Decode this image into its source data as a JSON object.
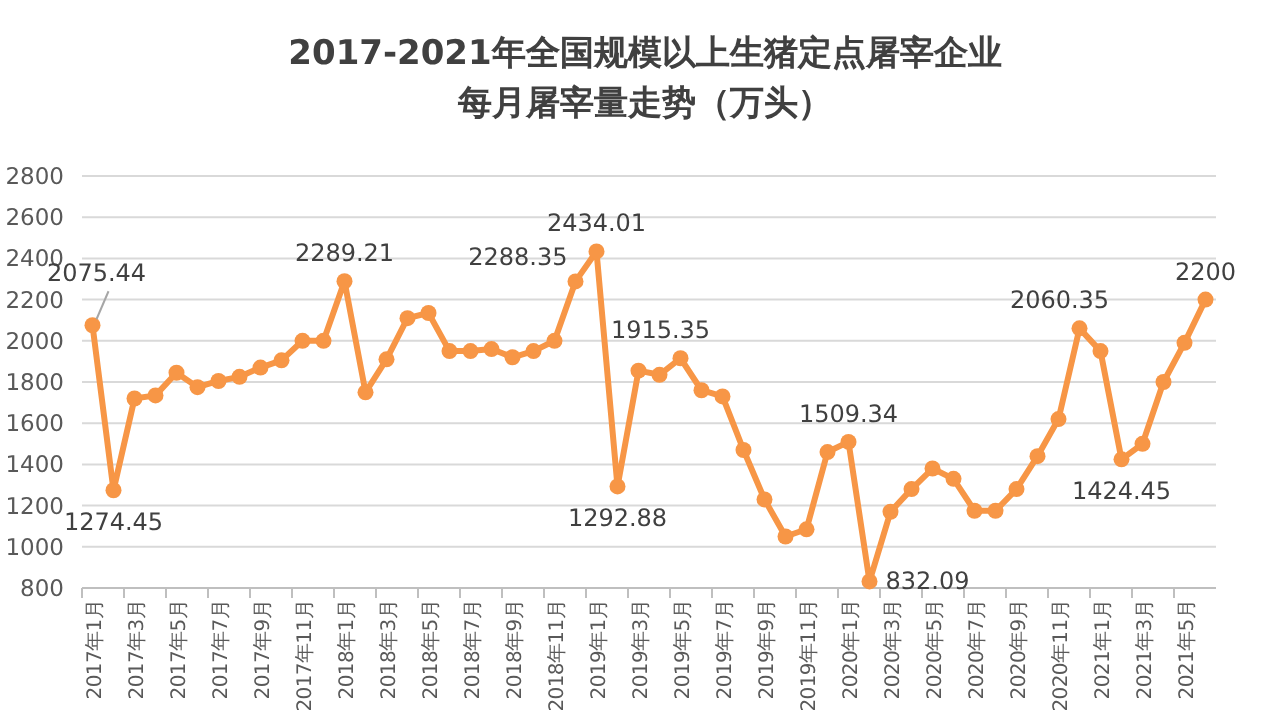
{
  "chart_data": {
    "type": "line",
    "title": "2017-2021年全国规模以上生猪定点屠宰企业",
    "subtitle": "每月屠宰量走势（万头）",
    "categories": [
      "2017年1月",
      null,
      "2017年3月",
      null,
      "2017年5月",
      null,
      "2017年7月",
      null,
      "2017年9月",
      null,
      "2017年11月",
      null,
      "2018年1月",
      null,
      "2018年3月",
      null,
      "2018年5月",
      null,
      "2018年7月",
      null,
      "2018年9月",
      null,
      "2018年11月",
      null,
      "2019年1月",
      null,
      "2019年3月",
      null,
      "2019年5月",
      null,
      "2019年7月",
      null,
      "2019年9月",
      null,
      "2019年11月",
      null,
      "2020年1月",
      null,
      "2020年3月",
      null,
      "2020年5月",
      null,
      "2020年7月",
      null,
      "2020年9月",
      null,
      "2020年11月",
      null,
      "2021年1月",
      null,
      "2021年3月",
      null,
      "2021年5月",
      null
    ],
    "series": [
      {
        "color": "#f79646",
        "values": [
          2075.44,
          1274.45,
          1720,
          1735,
          1845,
          1775,
          1805,
          1825,
          1870,
          1905,
          2000,
          2000,
          2289.21,
          1750,
          1910,
          2110,
          2135,
          1950,
          1950,
          1960,
          1920,
          1950,
          2000,
          2288.35,
          2434.01,
          1292.88,
          1855,
          1835,
          1915.35,
          1760,
          1730,
          1470,
          1230,
          1050,
          1085,
          1460,
          1509.34,
          832.09,
          1170,
          1280,
          1380,
          1330,
          1175,
          1175,
          1280,
          1440,
          1620,
          2060.35,
          1950,
          1424.45,
          1500,
          1800,
          1990,
          2200
        ],
        "value_labels": [
          "2075.44",
          "1274.45",
          null,
          null,
          null,
          null,
          null,
          null,
          null,
          null,
          null,
          null,
          "2289.21",
          null,
          null,
          null,
          null,
          null,
          null,
          null,
          null,
          null,
          null,
          "2288.35",
          "2434.01",
          "1292.88",
          null,
          null,
          "1915.35",
          null,
          null,
          null,
          null,
          null,
          null,
          null,
          "1509.34",
          "832.09",
          null,
          null,
          null,
          null,
          null,
          null,
          null,
          null,
          null,
          "2060.35",
          null,
          "1424.45",
          null,
          null,
          null,
          "2200"
        ]
      }
    ],
    "ylim": [
      800,
      2800
    ],
    "yticks": [
      800,
      1000,
      1200,
      1400,
      1600,
      1800,
      2000,
      2200,
      2400,
      2600,
      2800
    ],
    "grid": "y",
    "marker": "circle",
    "line_style": "solid"
  }
}
